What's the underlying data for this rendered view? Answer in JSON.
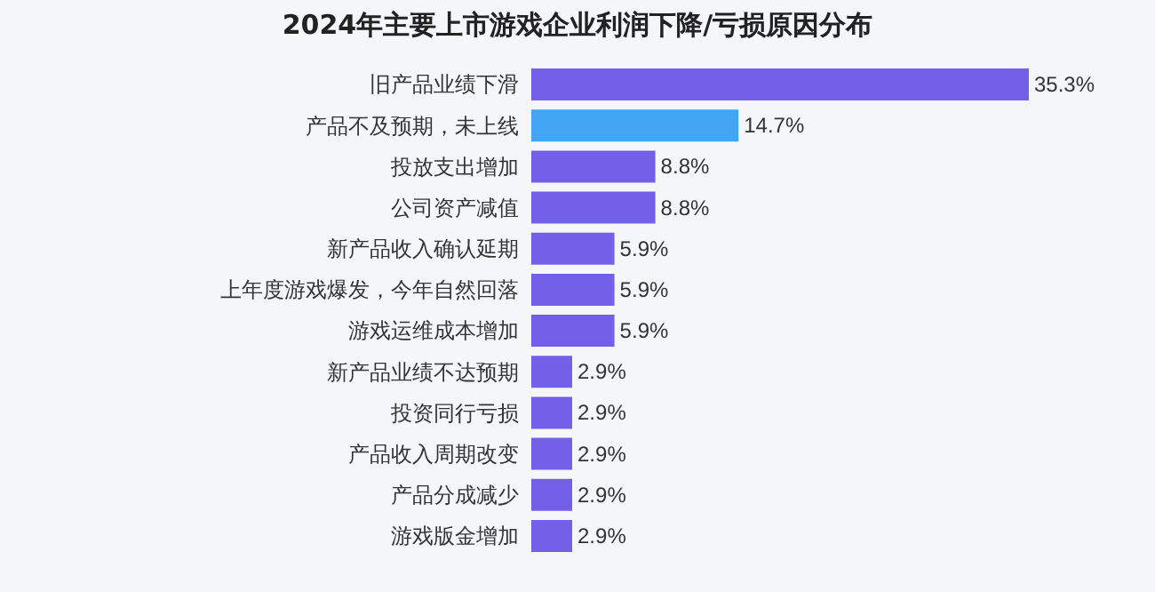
{
  "chart_data": {
    "type": "bar",
    "orientation": "horizontal",
    "title": "2024年主要上市游戏企业利润下降/亏损原因分布",
    "categories": [
      "旧产品业绩下滑",
      "产品不及预期，未上线",
      "投放支出增加",
      "公司资产减值",
      "新产品收入确认延期",
      "上年度游戏爆发，今年自然回落",
      "游戏运维成本增加",
      "新产品业绩不达预期",
      "投资同行亏损",
      "产品收入周期改变",
      "产品分成减少",
      "游戏版金增加"
    ],
    "values": [
      35.3,
      14.7,
      8.8,
      8.8,
      5.9,
      5.9,
      5.9,
      2.9,
      2.9,
      2.9,
      2.9,
      2.9
    ],
    "value_labels": [
      "35.3%",
      "14.7%",
      "8.8%",
      "8.8%",
      "5.9%",
      "5.9%",
      "5.9%",
      "2.9%",
      "2.9%",
      "2.9%",
      "2.9%",
      "2.9%"
    ],
    "colors": [
      "#7360e8",
      "#45a5f5",
      "#7360e8",
      "#7360e8",
      "#7360e8",
      "#7360e8",
      "#7360e8",
      "#7360e8",
      "#7360e8",
      "#7360e8",
      "#7360e8",
      "#7360e8"
    ]
  }
}
